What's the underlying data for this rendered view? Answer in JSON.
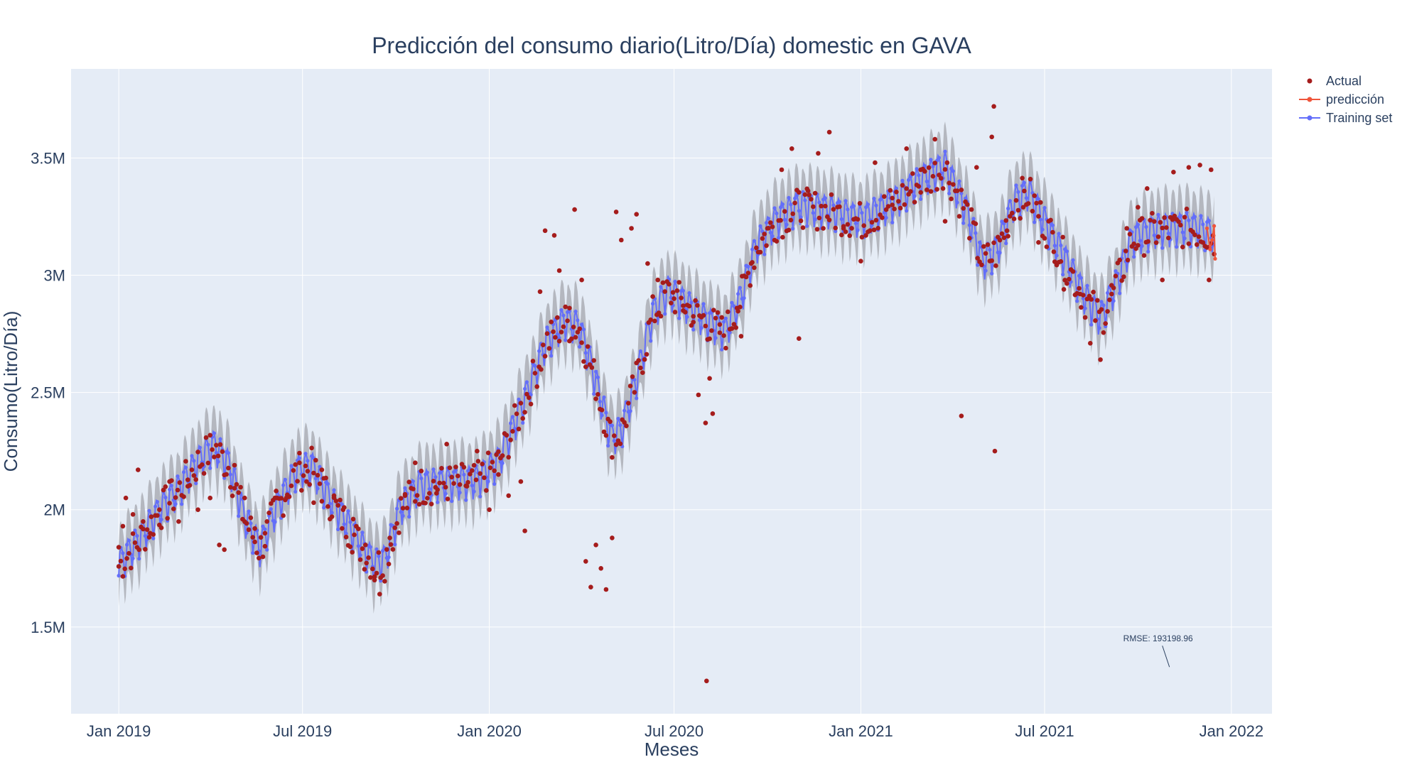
{
  "chart_data": {
    "type": "scatter",
    "title": "Predicción del consumo diario(Litro/Día) domestic en GAVA",
    "xlabel": "Meses",
    "ylabel": "Consumo(Litro/Día)",
    "xlim": [
      "2018-11-15",
      "2022-02-10"
    ],
    "ylim": [
      1130000,
      3880000
    ],
    "x_ticks": [
      {
        "date": "2019-01-01",
        "label": "Jan 2019"
      },
      {
        "date": "2019-07-01",
        "label": "Jul 2019"
      },
      {
        "date": "2020-01-01",
        "label": "Jan 2020"
      },
      {
        "date": "2020-07-01",
        "label": "Jul 2020"
      },
      {
        "date": "2021-01-01",
        "label": "Jan 2021"
      },
      {
        "date": "2021-07-01",
        "label": "Jul 2021"
      },
      {
        "date": "2022-01-01",
        "label": "Jan 2022"
      }
    ],
    "y_ticks": [
      {
        "value": 1500000,
        "label": "1.5M"
      },
      {
        "value": 2000000,
        "label": "2M"
      },
      {
        "value": 2500000,
        "label": "2.5M"
      },
      {
        "value": 3000000,
        "label": "3M"
      },
      {
        "value": 3500000,
        "label": "3.5M"
      }
    ],
    "grid": true,
    "legend_position": "top-right",
    "series": [
      {
        "name": "Actual",
        "mode": "markers",
        "color": "#a51c1c"
      },
      {
        "name": "predicción",
        "mode": "lines+markers",
        "color": "#ef553b"
      },
      {
        "name": "Training set",
        "mode": "lines+markers",
        "color": "#636efa"
      }
    ],
    "training_trend": [
      [
        "2019-01-01",
        1760000
      ],
      [
        "2019-01-20",
        1860000
      ],
      [
        "2019-02-10",
        1990000
      ],
      [
        "2019-03-01",
        2080000
      ],
      [
        "2019-03-20",
        2200000
      ],
      [
        "2019-04-05",
        2270000
      ],
      [
        "2019-04-20",
        2180000
      ],
      [
        "2019-05-05",
        1960000
      ],
      [
        "2019-05-20",
        1830000
      ],
      [
        "2019-06-05",
        2000000
      ],
      [
        "2019-06-25",
        2160000
      ],
      [
        "2019-07-10",
        2180000
      ],
      [
        "2019-07-25",
        2060000
      ],
      [
        "2019-08-10",
        1960000
      ],
      [
        "2019-08-25",
        1860000
      ],
      [
        "2019-09-10",
        1760000
      ],
      [
        "2019-09-20",
        1780000
      ],
      [
        "2019-10-05",
        2000000
      ],
      [
        "2019-10-25",
        2100000
      ],
      [
        "2019-11-20",
        2110000
      ],
      [
        "2019-12-20",
        2120000
      ],
      [
        "2020-01-10",
        2200000
      ],
      [
        "2020-01-25",
        2350000
      ],
      [
        "2020-02-10",
        2520000
      ],
      [
        "2020-02-25",
        2700000
      ],
      [
        "2020-03-15",
        2800000
      ],
      [
        "2020-03-30",
        2770000
      ],
      [
        "2020-04-15",
        2540000
      ],
      [
        "2020-04-30",
        2300000
      ],
      [
        "2020-05-10",
        2330000
      ],
      [
        "2020-05-25",
        2550000
      ],
      [
        "2020-06-10",
        2830000
      ],
      [
        "2020-06-25",
        2930000
      ],
      [
        "2020-07-15",
        2860000
      ],
      [
        "2020-08-05",
        2790000
      ],
      [
        "2020-08-20",
        2750000
      ],
      [
        "2020-09-05",
        2900000
      ],
      [
        "2020-09-20",
        3120000
      ],
      [
        "2020-10-10",
        3230000
      ],
      [
        "2020-11-01",
        3290000
      ],
      [
        "2020-12-01",
        3270000
      ],
      [
        "2021-01-01",
        3230000
      ],
      [
        "2021-02-01",
        3300000
      ],
      [
        "2021-03-01",
        3400000
      ],
      [
        "2021-03-25",
        3460000
      ],
      [
        "2021-04-15",
        3270000
      ],
      [
        "2021-05-01",
        3050000
      ],
      [
        "2021-05-15",
        3100000
      ],
      [
        "2021-06-01",
        3310000
      ],
      [
        "2021-06-15",
        3350000
      ],
      [
        "2021-07-01",
        3220000
      ],
      [
        "2021-07-20",
        3070000
      ],
      [
        "2021-08-10",
        2900000
      ],
      [
        "2021-08-25",
        2810000
      ],
      [
        "2021-09-10",
        2960000
      ],
      [
        "2021-09-25",
        3150000
      ],
      [
        "2021-10-20",
        3190000
      ],
      [
        "2021-11-20",
        3200000
      ],
      [
        "2021-12-15",
        3170000
      ]
    ],
    "actual_points": [
      [
        "2019-01-01",
        1840000
      ],
      [
        "2019-01-05",
        1930000
      ],
      [
        "2019-01-08",
        2050000
      ],
      [
        "2019-01-15",
        1980000
      ],
      [
        "2019-01-20",
        2170000
      ],
      [
        "2019-01-25",
        1950000
      ],
      [
        "2019-02-01",
        1900000
      ],
      [
        "2019-02-10",
        2000000
      ],
      [
        "2019-02-20",
        2120000
      ],
      [
        "2019-03-01",
        1950000
      ],
      [
        "2019-03-10",
        2100000
      ],
      [
        "2019-03-20",
        2000000
      ],
      [
        "2019-04-01",
        2050000
      ],
      [
        "2019-04-10",
        1850000
      ],
      [
        "2019-04-15",
        1830000
      ],
      [
        "2019-04-25",
        2190000
      ],
      [
        "2019-05-05",
        2050000
      ],
      [
        "2019-05-15",
        1920000
      ],
      [
        "2019-05-25",
        1900000
      ],
      [
        "2019-06-05",
        2080000
      ],
      [
        "2019-06-15",
        2050000
      ],
      [
        "2019-06-28",
        2200000
      ],
      [
        "2019-07-05",
        2120000
      ],
      [
        "2019-07-12",
        2030000
      ],
      [
        "2019-07-20",
        2170000
      ],
      [
        "2019-08-01",
        2060000
      ],
      [
        "2019-08-10",
        2000000
      ],
      [
        "2019-08-20",
        1960000
      ],
      [
        "2019-09-01",
        1850000
      ],
      [
        "2019-09-10",
        1700000
      ],
      [
        "2019-09-15",
        1640000
      ],
      [
        "2019-09-25",
        1880000
      ],
      [
        "2019-10-10",
        2060000
      ],
      [
        "2019-10-20",
        2200000
      ],
      [
        "2019-11-10",
        2070000
      ],
      [
        "2019-11-20",
        2280000
      ],
      [
        "2019-12-10",
        2100000
      ],
      [
        "2019-12-20",
        2250000
      ],
      [
        "2020-01-01",
        2000000
      ],
      [
        "2020-01-10",
        2150000
      ],
      [
        "2020-01-20",
        2060000
      ],
      [
        "2020-02-01",
        2120000
      ],
      [
        "2020-02-05",
        1910000
      ],
      [
        "2020-02-20",
        2930000
      ],
      [
        "2020-02-25",
        3190000
      ],
      [
        "2020-03-05",
        3170000
      ],
      [
        "2020-03-10",
        3020000
      ],
      [
        "2020-03-20",
        2860000
      ],
      [
        "2020-03-25",
        3280000
      ],
      [
        "2020-04-01",
        2980000
      ],
      [
        "2020-04-05",
        1780000
      ],
      [
        "2020-04-10",
        1670000
      ],
      [
        "2020-04-15",
        1850000
      ],
      [
        "2020-04-20",
        1750000
      ],
      [
        "2020-04-25",
        1660000
      ],
      [
        "2020-05-01",
        1880000
      ],
      [
        "2020-05-05",
        3270000
      ],
      [
        "2020-05-10",
        3150000
      ],
      [
        "2020-05-20",
        3200000
      ],
      [
        "2020-05-25",
        3260000
      ],
      [
        "2020-06-05",
        3050000
      ],
      [
        "2020-06-15",
        2980000
      ],
      [
        "2020-07-01",
        2900000
      ],
      [
        "2020-07-10",
        2870000
      ],
      [
        "2020-07-20",
        2800000
      ],
      [
        "2020-07-25",
        2490000
      ],
      [
        "2020-08-01",
        2370000
      ],
      [
        "2020-08-02",
        1270000
      ],
      [
        "2020-08-05",
        2560000
      ],
      [
        "2020-08-08",
        2410000
      ],
      [
        "2020-08-15",
        2790000
      ],
      [
        "2020-09-01",
        2860000
      ],
      [
        "2020-09-05",
        2740000
      ],
      [
        "2020-09-15",
        3050000
      ],
      [
        "2020-10-01",
        3200000
      ],
      [
        "2020-10-15",
        3450000
      ],
      [
        "2020-10-25",
        3540000
      ],
      [
        "2020-11-01",
        2730000
      ],
      [
        "2020-11-10",
        3360000
      ],
      [
        "2020-11-20",
        3520000
      ],
      [
        "2020-12-01",
        3610000
      ],
      [
        "2020-12-15",
        3200000
      ],
      [
        "2021-01-01",
        3060000
      ],
      [
        "2021-01-15",
        3480000
      ],
      [
        "2021-02-01",
        3300000
      ],
      [
        "2021-02-15",
        3540000
      ],
      [
        "2021-03-01",
        3450000
      ],
      [
        "2021-03-15",
        3580000
      ],
      [
        "2021-03-25",
        3230000
      ],
      [
        "2021-04-10",
        2400000
      ],
      [
        "2021-04-25",
        3460000
      ],
      [
        "2021-05-10",
        3590000
      ],
      [
        "2021-05-12",
        3720000
      ],
      [
        "2021-05-13",
        2250000
      ],
      [
        "2021-05-25",
        3190000
      ],
      [
        "2021-06-10",
        3290000
      ],
      [
        "2021-06-25",
        3140000
      ],
      [
        "2021-07-10",
        3100000
      ],
      [
        "2021-07-20",
        2940000
      ],
      [
        "2021-08-05",
        2920000
      ],
      [
        "2021-08-15",
        2710000
      ],
      [
        "2021-08-25",
        2640000
      ],
      [
        "2021-09-05",
        2920000
      ],
      [
        "2021-09-20",
        3200000
      ],
      [
        "2021-10-01",
        3290000
      ],
      [
        "2021-10-10",
        3370000
      ],
      [
        "2021-10-25",
        2980000
      ],
      [
        "2021-11-05",
        3440000
      ],
      [
        "2021-11-20",
        3460000
      ],
      [
        "2021-12-01",
        3470000
      ],
      [
        "2021-12-10",
        2980000
      ],
      [
        "2021-12-12",
        3450000
      ],
      [
        "2021-12-15",
        3090000
      ]
    ],
    "prediction": [
      [
        "2021-12-08",
        3200000
      ],
      [
        "2021-12-11",
        3110000
      ],
      [
        "2021-12-13",
        3150000
      ],
      [
        "2021-12-15",
        3210000
      ],
      [
        "2021-12-16",
        3070000
      ]
    ],
    "annotations": [
      {
        "text": "RMSE: 193198.96",
        "x": "2021-10-25",
        "y": 1420000
      }
    ]
  }
}
